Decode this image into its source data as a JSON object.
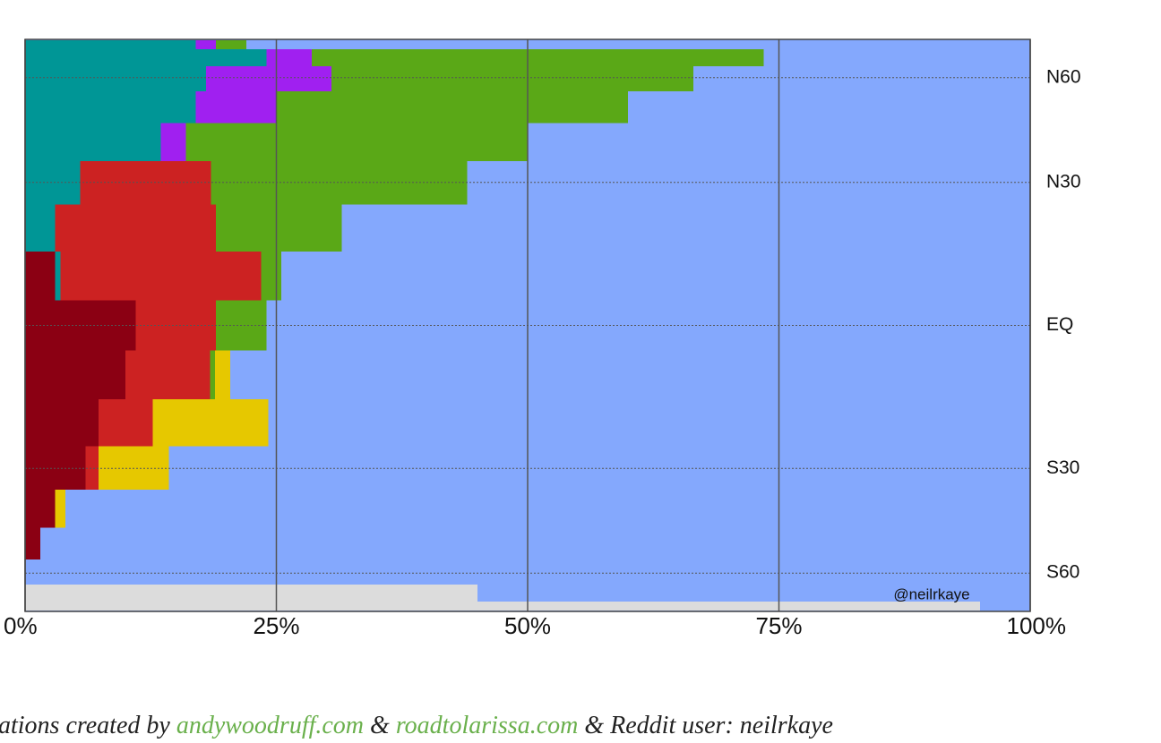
{
  "chart_data": {
    "type": "stacked-band",
    "y": [
      80,
      70,
      60,
      50,
      40,
      30,
      20,
      10,
      0,
      -10,
      -20,
      -30,
      -40,
      -50,
      -60,
      -70,
      -80
    ],
    "yscale": "sine",
    "ylim": [
      -90,
      90
    ],
    "yticks": [
      {
        "value": 60,
        "label": "N60"
      },
      {
        "value": 30,
        "label": "N30"
      },
      {
        "value": 0,
        "label": "EQ"
      },
      {
        "value": -30,
        "label": "S30"
      },
      {
        "value": -60,
        "label": "S60"
      }
    ],
    "xlim": [
      0,
      100
    ],
    "xticks": [
      {
        "value": 0,
        "label": "0%"
      },
      {
        "value": 25,
        "label": "25%"
      },
      {
        "value": 50,
        "label": "50%"
      },
      {
        "value": 75,
        "label": "75%"
      },
      {
        "value": 100,
        "label": "100%"
      }
    ],
    "background": "#84a8fd",
    "series": [
      {
        "color": "#8b0013",
        "values": [
          0,
          0,
          0,
          0,
          0,
          0,
          0,
          3,
          11,
          10,
          7.3,
          6,
          3,
          1.5,
          0,
          0,
          0
        ]
      },
      {
        "color": "#009696",
        "values": [
          17,
          24,
          18,
          17,
          13.5,
          5.5,
          3,
          0.5,
          0,
          0,
          0,
          0,
          0,
          0,
          0,
          0,
          0
        ]
      },
      {
        "color": "#cc2222",
        "values": [
          0,
          0,
          0,
          0,
          0,
          13,
          16,
          20,
          8,
          8.4,
          5.4,
          1.3,
          0,
          0,
          0,
          0,
          0
        ]
      },
      {
        "color": "#a020f0",
        "values": [
          2,
          4.5,
          12.5,
          8,
          2.5,
          0,
          0,
          0,
          0,
          0,
          0,
          0,
          0,
          0,
          0,
          0,
          0
        ]
      },
      {
        "color": "#5aa817",
        "values": [
          3,
          45,
          36,
          35,
          34,
          25.5,
          12.5,
          2,
          5,
          0.5,
          0,
          0,
          0,
          0,
          0,
          0,
          0
        ]
      },
      {
        "color": "#e6c800",
        "values": [
          0,
          0,
          0,
          0,
          0,
          0,
          0,
          0,
          0,
          1.5,
          11.5,
          7,
          1,
          0,
          0,
          0,
          0
        ]
      },
      {
        "color": "#dcdcdc",
        "values": [
          0,
          0,
          0,
          0,
          0,
          0,
          0,
          0,
          0,
          0,
          0,
          0,
          0,
          0,
          0,
          45,
          95
        ]
      }
    ],
    "watermark": "@neilrkaye",
    "caption": {
      "prefix": "ations created by",
      "link1": "andywoodruff.com",
      "sep": "&",
      "link2": "roadtolarissa.com",
      "suffix": "& Reddit user: neilrkaye"
    }
  }
}
